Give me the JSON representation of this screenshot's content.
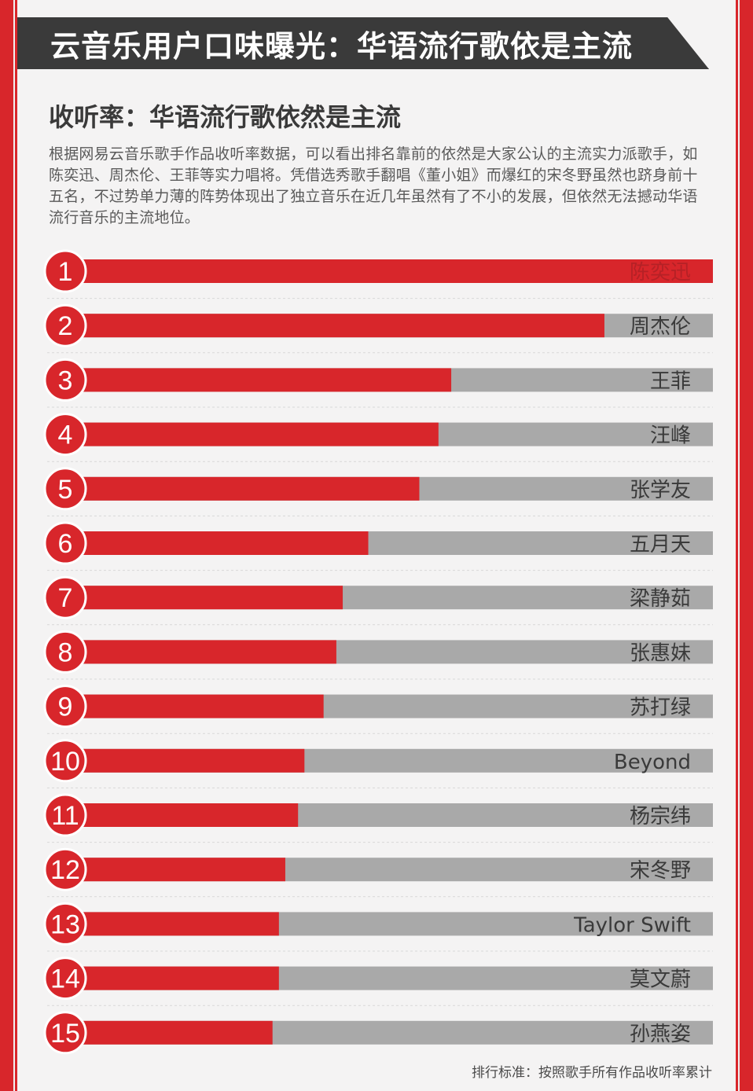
{
  "header": {
    "title": "云音乐用户口味曝光：华语流行歌依是主流",
    "subtitle": "收听率：华语流行歌依然是主流",
    "description": "根据网易云音乐歌手作品收听率数据，可以看出排名靠前的依然是大家公认的主流实力派歌手，如陈奕迅、周杰伦、王菲等实力唱将。凭借选秀歌手翻唱《董小姐》而爆红的宋冬野虽然也跻身前十五名，不过势单力薄的阵势体现出了独立音乐在近几年虽然有了不小的发展，但依然无法撼动华语流行音乐的主流地位。"
  },
  "footnote": "排行标准：按照歌手所有作品收听率累计",
  "colors": {
    "bar_fill": "#d8262b",
    "bar_track": "#a9a9a9",
    "header_bg": "#3a3a3a",
    "frame": "#d8262b"
  },
  "chart_data": {
    "type": "bar",
    "orientation": "horizontal",
    "categories": [
      "陈奕迅",
      "周杰伦",
      "王菲",
      "汪峰",
      "张学友",
      "五月天",
      "梁静茹",
      "张惠妹",
      "苏打绿",
      "Beyond",
      "杨宗纬",
      "宋冬野",
      "Taylor Swift",
      "莫文蔚",
      "孙燕姿"
    ],
    "ranks": [
      "1",
      "2",
      "3",
      "4",
      "5",
      "6",
      "7",
      "8",
      "9",
      "10",
      "11",
      "12",
      "13",
      "14",
      "15"
    ],
    "values": [
      100,
      83,
      59,
      57,
      54,
      46,
      42,
      41,
      39,
      36,
      35,
      33,
      32,
      32,
      31
    ],
    "xlim": [
      0,
      100
    ]
  }
}
